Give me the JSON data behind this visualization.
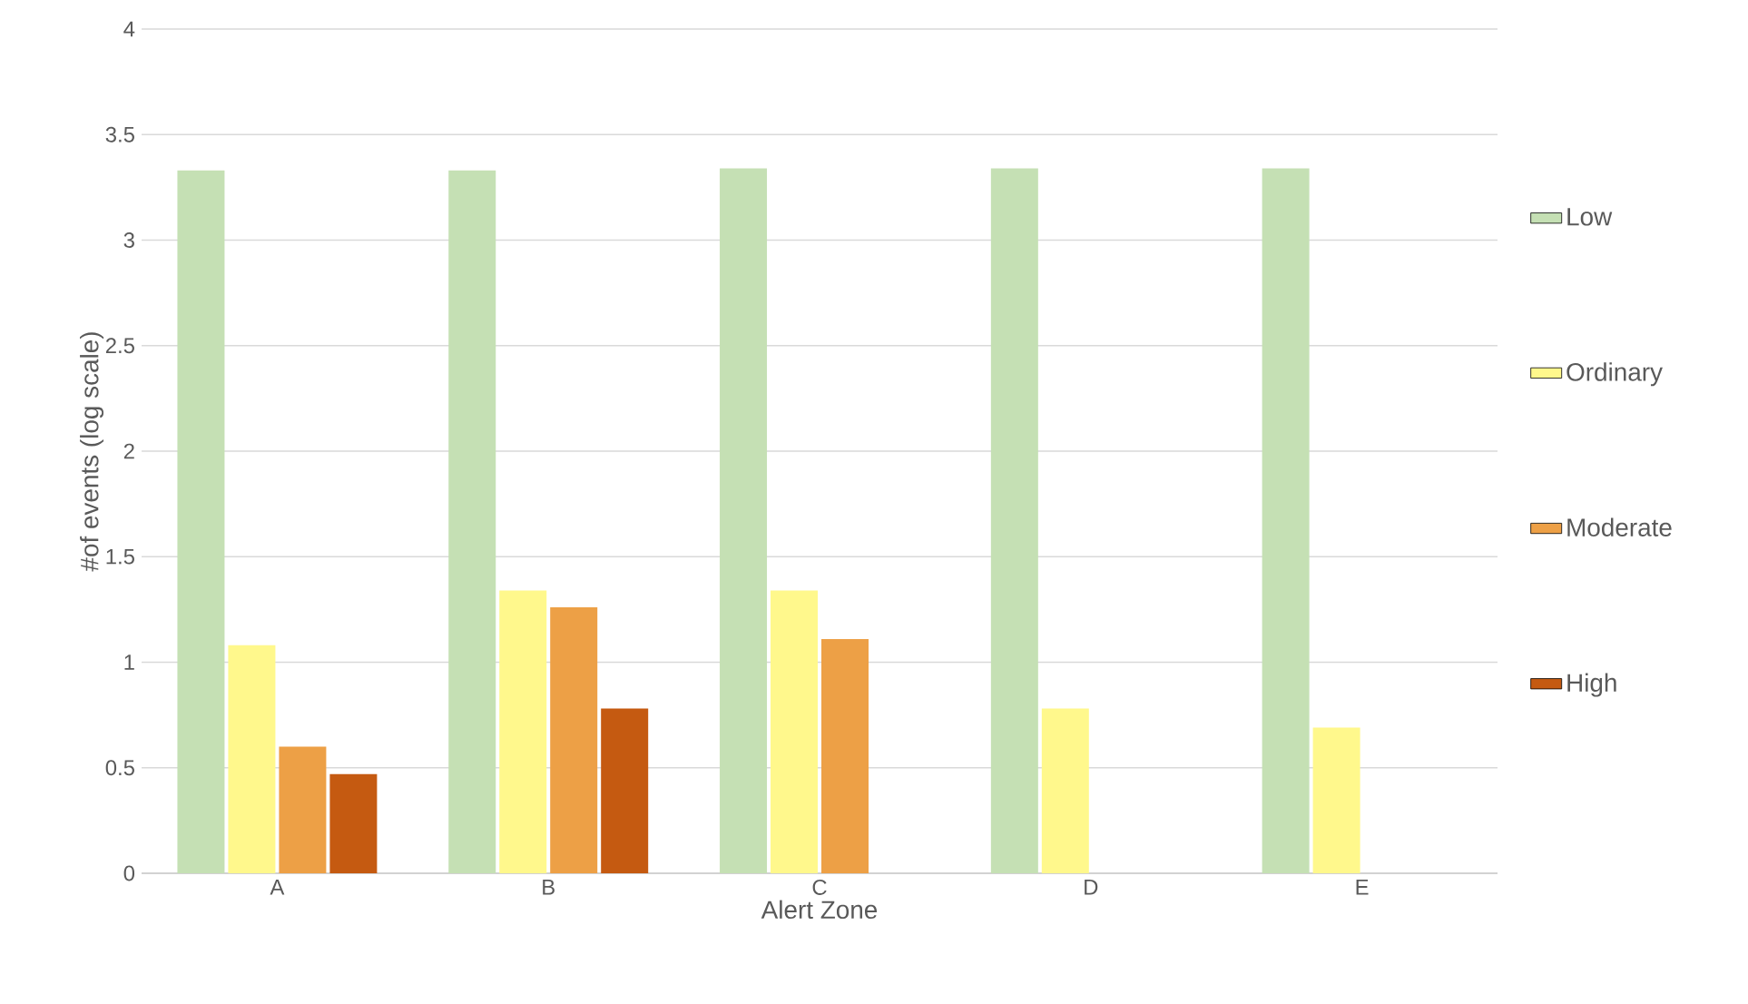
{
  "chart_data": {
    "type": "bar",
    "xlabel": "Alert Zone",
    "ylabel": "#of events (log scale)",
    "categories": [
      "A",
      "B",
      "C",
      "D",
      "E"
    ],
    "series": [
      {
        "name": "Low",
        "color": "#c5e0b4",
        "values": [
          3.33,
          3.33,
          3.34,
          3.34,
          3.34
        ]
      },
      {
        "name": "Ordinary",
        "color": "#fff88c",
        "values": [
          1.08,
          1.34,
          1.34,
          0.78,
          0.69
        ]
      },
      {
        "name": "Moderate",
        "color": "#eda046",
        "values": [
          0.6,
          1.26,
          1.11,
          null,
          null
        ]
      },
      {
        "name": "High",
        "color": "#c55a11",
        "values": [
          0.47,
          0.78,
          null,
          null,
          null
        ]
      }
    ],
    "ylim": [
      0,
      4
    ],
    "yticks": [
      0,
      0.5,
      1,
      1.5,
      2,
      2.5,
      3,
      3.5,
      4
    ],
    "grid": "y",
    "legend": "right"
  }
}
